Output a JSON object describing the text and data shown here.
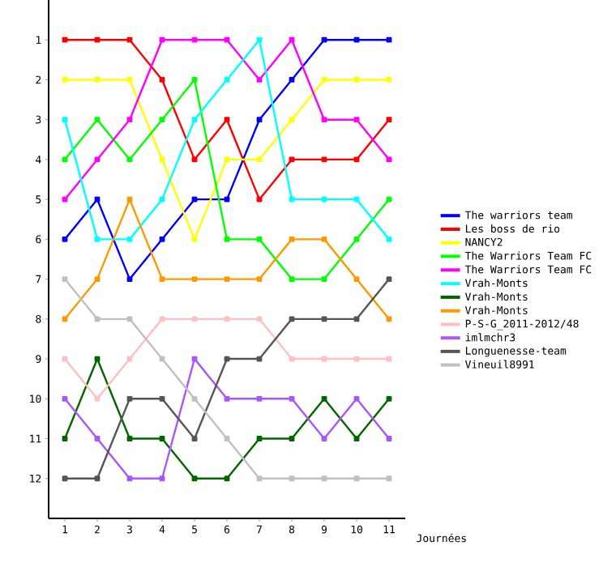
{
  "chart_data": {
    "type": "line",
    "xlabel": "Journées",
    "x": [
      1,
      2,
      3,
      4,
      5,
      6,
      7,
      8,
      9,
      10,
      11
    ],
    "xlim": [
      0.5,
      11.5
    ],
    "xticks": [
      1,
      2,
      3,
      4,
      5,
      6,
      7,
      8,
      9,
      10,
      11
    ],
    "ylim": [
      13,
      0
    ],
    "yticks": [
      1,
      2,
      3,
      4,
      5,
      6,
      7,
      8,
      9,
      10,
      11,
      12
    ],
    "marker": "square",
    "legend": "right",
    "grid": false,
    "series": [
      {
        "name": "The warriors team",
        "color": "#0000ff",
        "values": [
          6,
          5,
          7,
          6,
          5,
          5,
          3,
          2,
          1,
          1,
          1
        ]
      },
      {
        "name": "Les boss de rio",
        "color": "#ff0000",
        "values": [
          1,
          1,
          1,
          2,
          4,
          3,
          5,
          4,
          4,
          4,
          3
        ]
      },
      {
        "name": "NANCY2",
        "color": "#ffff00",
        "values": [
          2,
          2,
          2,
          4,
          6,
          4,
          4,
          3,
          2,
          2,
          2
        ]
      },
      {
        "name": "The Warriors Team FC",
        "color": "#00ff00",
        "values": [
          4,
          3,
          4,
          3,
          2,
          6,
          6,
          7,
          7,
          6,
          5
        ]
      },
      {
        "name": "The Warriors Team FC",
        "color": "#ff00ff",
        "values": [
          5,
          4,
          3,
          1,
          1,
          1,
          2,
          1,
          3,
          3,
          4
        ]
      },
      {
        "name": "Vrah-Monts",
        "color": "#00ffff",
        "values": [
          3,
          6,
          6,
          5,
          3,
          2,
          1,
          5,
          5,
          5,
          6
        ]
      },
      {
        "name": "Vrah-Monts",
        "color": "#006600",
        "values": [
          11,
          9,
          11,
          11,
          12,
          12,
          11,
          11,
          10,
          11,
          10
        ]
      },
      {
        "name": "Vrah-Monts",
        "color": "#ff9900",
        "values": [
          8,
          7,
          5,
          7,
          7,
          7,
          7,
          6,
          6,
          7,
          8
        ]
      },
      {
        "name": "P-S-G_2011-2012/48",
        "color": "#ffc0c0",
        "values": [
          9,
          10,
          9,
          8,
          8,
          8,
          8,
          9,
          9,
          9,
          9
        ]
      },
      {
        "name": "imlmchr3",
        "color": "#aa55ff",
        "values": [
          10,
          11,
          12,
          12,
          9,
          10,
          10,
          10,
          11,
          10,
          11
        ]
      },
      {
        "name": "Longuenesse-team",
        "color": "#555555",
        "values": [
          12,
          12,
          10,
          10,
          11,
          9,
          9,
          8,
          8,
          8,
          7
        ]
      },
      {
        "name": "Vineuil8991",
        "color": "#c0c0c0",
        "values": [
          7,
          8,
          8,
          9,
          10,
          11,
          12,
          12,
          12,
          12,
          12
        ]
      }
    ]
  }
}
